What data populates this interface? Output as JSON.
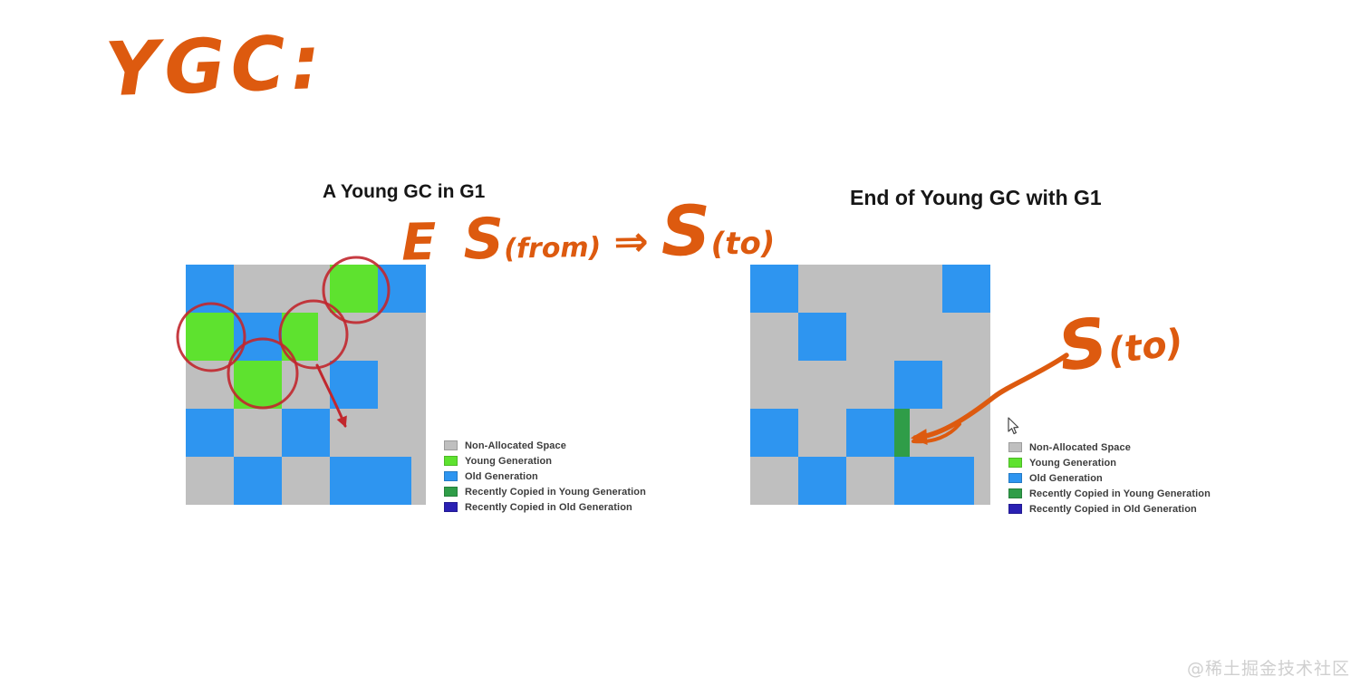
{
  "left_panel": {
    "title": "A Young GC in G1",
    "grid": {
      "rows": 5,
      "cols": 5,
      "cells": [
        {
          "r": 0,
          "c": 0,
          "t": "old"
        },
        {
          "r": 0,
          "c": 3,
          "t": "young",
          "circled": true
        },
        {
          "r": 0,
          "c": 4,
          "t": "old"
        },
        {
          "r": 1,
          "c": 0,
          "t": "young",
          "circled": true
        },
        {
          "r": 1,
          "c": 1,
          "t": "old"
        },
        {
          "r": 1,
          "c": 2,
          "t": "young",
          "w": 0.75,
          "circled": true
        },
        {
          "r": 2,
          "c": 1,
          "t": "young",
          "circled": true
        },
        {
          "r": 2,
          "c": 3,
          "t": "old"
        },
        {
          "r": 3,
          "c": 0,
          "t": "old"
        },
        {
          "r": 3,
          "c": 2,
          "t": "old"
        },
        {
          "r": 4,
          "c": 1,
          "t": "old"
        },
        {
          "r": 4,
          "c": 3,
          "t": "old",
          "w": 1.7
        }
      ]
    }
  },
  "right_panel": {
    "title": "End of Young GC with G1",
    "grid": {
      "rows": 5,
      "cols": 5,
      "cells": [
        {
          "r": 0,
          "c": 0,
          "t": "old"
        },
        {
          "r": 0,
          "c": 4,
          "t": "old"
        },
        {
          "r": 1,
          "c": 1,
          "t": "old"
        },
        {
          "r": 2,
          "c": 3,
          "t": "old"
        },
        {
          "r": 3,
          "c": 0,
          "t": "old"
        },
        {
          "r": 3,
          "c": 2,
          "t": "old"
        },
        {
          "r": 3,
          "c": 3,
          "t": "recent_young",
          "w": 0.32
        },
        {
          "r": 4,
          "c": 1,
          "t": "old"
        },
        {
          "r": 4,
          "c": 3,
          "t": "old",
          "w": 1.66
        }
      ]
    }
  },
  "legend": {
    "items": [
      {
        "label": "Non-Allocated Space",
        "color": "#bfbfbf"
      },
      {
        "label": "Young Generation",
        "color": "#5ee22f"
      },
      {
        "label": "Old Generation",
        "color": "#2e95f0"
      },
      {
        "label": "Recently Copied in Young Generation",
        "color": "#2f9d48"
      },
      {
        "label": "Recently Copied in Old Generation",
        "color": "#2a20b3"
      }
    ]
  },
  "colors": {
    "non_allocated": "#bfbfbf",
    "young": "#5ee22f",
    "old": "#2e95f0",
    "recent_young": "#2f9d48",
    "recent_old": "#2a20b3"
  },
  "annotations": {
    "heading": "YGC:",
    "transition": {
      "e": "E",
      "s_from": "S",
      "from_sub": "(from)",
      "implies": "⇒",
      "s_to": "S",
      "to_sub": "(to)"
    },
    "survivor_to": {
      "s": "S",
      "sub": "(to)"
    },
    "ink_color": "#dd5a0f",
    "red_color": "#c1272d"
  },
  "watermark": "@稀土掘金技术社区"
}
